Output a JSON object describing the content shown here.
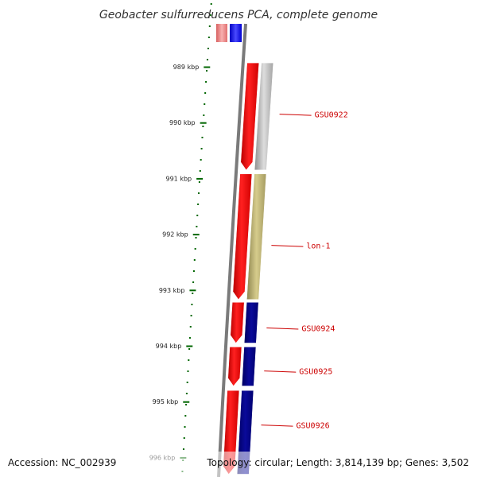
{
  "header": {
    "title": "Geobacter sulfurreducens PCA, complete genome"
  },
  "footer": {
    "accession": "Accession: NC_002939",
    "topology": "Topology: circular; Length: 3,814,139 bp; Genes: 3,502"
  },
  "ruler": {
    "unit": "kbp",
    "ticks": [
      {
        "kbp": 989,
        "label": "989 kbp"
      },
      {
        "kbp": 990,
        "label": "990 kbp"
      },
      {
        "kbp": 991,
        "label": "991 kbp"
      },
      {
        "kbp": 992,
        "label": "992 kbp"
      },
      {
        "kbp": 993,
        "label": "993 kbp"
      },
      {
        "kbp": 994,
        "label": "994 kbp"
      },
      {
        "kbp": 995,
        "label": "995 kbp"
      },
      {
        "kbp": 996,
        "label": "996 kbp"
      }
    ]
  },
  "colors": {
    "forward_cds": "#ff0000",
    "reverse_cds_grey": "#b8b8b8",
    "reverse_cds_olive": "#b8ae6c",
    "reverse_cds_navy": "#000080",
    "top_blue": "#0000ff",
    "top_pink": "#e88080",
    "backbone": "#7a7a7a",
    "ruler_green": "#006600",
    "label_red": "#cc0000"
  },
  "features": {
    "forward": [
      {
        "start_kbp": 988.93,
        "end_kbp": 990.85
      },
      {
        "start_kbp": 990.92,
        "end_kbp": 993.17
      },
      {
        "start_kbp": 993.22,
        "end_kbp": 993.95
      },
      {
        "start_kbp": 994.02,
        "end_kbp": 994.72
      },
      {
        "start_kbp": 994.8,
        "end_kbp": 996.3
      }
    ],
    "reverse": [
      {
        "start_kbp": 988.93,
        "end_kbp": 990.85,
        "color_key": "reverse_cds_grey"
      },
      {
        "start_kbp": 990.92,
        "end_kbp": 993.17,
        "color_key": "reverse_cds_olive"
      },
      {
        "start_kbp": 993.22,
        "end_kbp": 993.95,
        "color_key": "reverse_cds_navy"
      },
      {
        "start_kbp": 994.02,
        "end_kbp": 994.72,
        "color_key": "reverse_cds_navy"
      },
      {
        "start_kbp": 994.8,
        "end_kbp": 996.3,
        "color_key": "reverse_cds_navy"
      }
    ]
  },
  "labels": [
    {
      "text": "GSU0922",
      "kbp": 989.85
    },
    {
      "text": "lon-1",
      "kbp": 992.2
    },
    {
      "text": "GSU0924",
      "kbp": 993.68
    },
    {
      "text": "GSU0925",
      "kbp": 994.45
    },
    {
      "text": "GSU0926",
      "kbp": 995.42
    }
  ]
}
